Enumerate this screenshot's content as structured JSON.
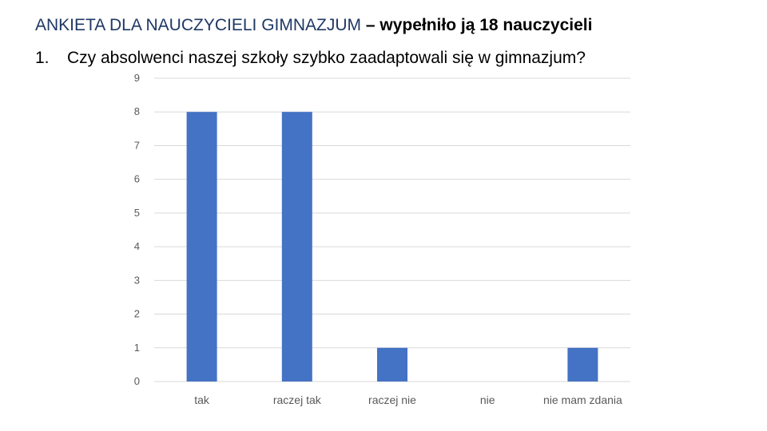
{
  "header": {
    "title_part1": "ANKIETA DLA NAUCZYCIELI GIMNAZJUM",
    "title_part2": " – wypełniło ją 18 nauczycieli",
    "question_number": "1.",
    "question_text": "Czy absolwenci naszej szkoły szybko zaadaptowali się w gimnazjum?"
  },
  "chart_data": {
    "type": "bar",
    "categories": [
      "tak",
      "raczej tak",
      "raczej nie",
      "nie",
      "nie mam zdania"
    ],
    "values": [
      8,
      8,
      1,
      0,
      1
    ],
    "ylim": [
      0,
      9
    ],
    "yticks": [
      0,
      1,
      2,
      3,
      4,
      5,
      6,
      7,
      8,
      9
    ],
    "grid": true,
    "bar_color": "#4472C4",
    "grid_color": "#D9D9D9"
  }
}
